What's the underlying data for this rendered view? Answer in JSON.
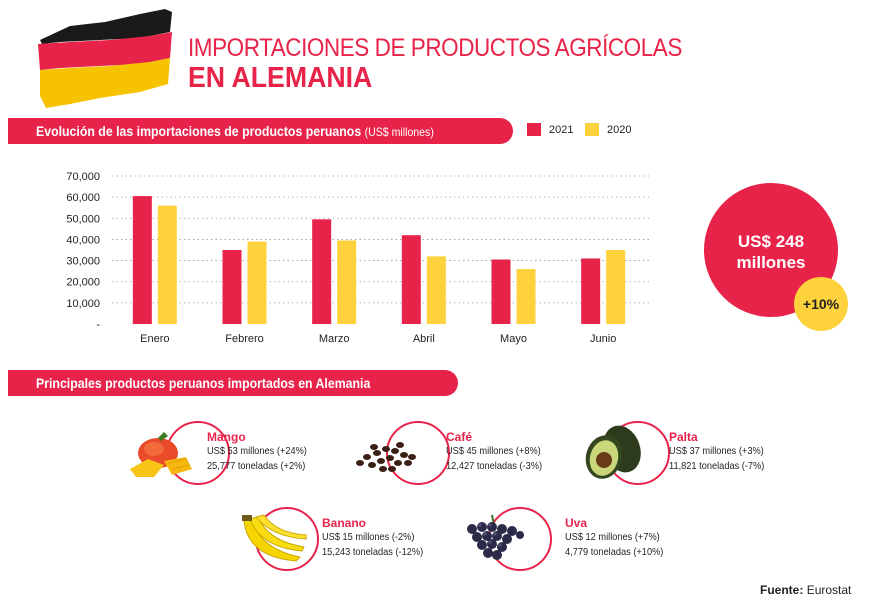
{
  "header": {
    "title_line1": "IMPORTACIONES DE PRODUCTOS AGRÍCOLAS",
    "title_line2": "EN ALEMANIA"
  },
  "colors": {
    "accent": "#e8234a",
    "series_2021": "#e8234a",
    "series_2020": "#fdd23c",
    "flag_black": "#1a1a1a",
    "flag_red": "#e8234a",
    "flag_gold": "#f7c200"
  },
  "section1": {
    "title": "Evolución de las importaciones de productos peruanos",
    "unit": "(US$ millones)"
  },
  "legend": [
    {
      "label": "2021",
      "color": "#e8234a"
    },
    {
      "label": "2020",
      "color": "#fdd23c"
    }
  ],
  "chart_data": {
    "type": "bar",
    "categories": [
      "Enero",
      "Febrero",
      "Marzo",
      "Abril",
      "Mayo",
      "Junio"
    ],
    "series": [
      {
        "name": "2021",
        "values": [
          60500,
          35000,
          49500,
          42000,
          30500,
          31000
        ]
      },
      {
        "name": "2020",
        "values": [
          56000,
          39000,
          39500,
          32000,
          26000,
          35000
        ]
      }
    ],
    "yticks": [
      "-",
      "10,000",
      "20,000",
      "30,000",
      "40,000",
      "50,000",
      "60,000",
      "70,000"
    ],
    "ylim": [
      0,
      70000
    ],
    "grid": true,
    "legend_position": "top-right",
    "title": "",
    "xlabel": "",
    "ylabel": ""
  },
  "summary": {
    "total_line1": "US$ 248",
    "total_line2": "millones",
    "growth": "+10%"
  },
  "section2": {
    "title": "Principales productos peruanos importados en Alemania"
  },
  "products": [
    {
      "name": "Mango",
      "icon": "mango-icon",
      "line1": "US$ 53 millones (+24%)",
      "line2": "25,777 toneladas (+2%)"
    },
    {
      "name": "Café",
      "icon": "coffee-beans-icon",
      "line1": "US$ 45 millones (+8%)",
      "line2": "12,427 toneladas (-3%)"
    },
    {
      "name": "Palta",
      "icon": "avocado-icon",
      "line1": "US$ 37 millones (+3%)",
      "line2": "11,821 toneladas (-7%)"
    },
    {
      "name": "Banano",
      "icon": "banana-icon",
      "line1": "US$ 15 millones (-2%)",
      "line2": "15,243 toneladas (-12%)"
    },
    {
      "name": "Uva",
      "icon": "grapes-icon",
      "line1": "US$ 12 millones (+7%)",
      "line2": "4,779 toneladas (+10%)"
    }
  ],
  "footer": {
    "source_label": "Fuente:",
    "source_value": "Eurostat"
  }
}
